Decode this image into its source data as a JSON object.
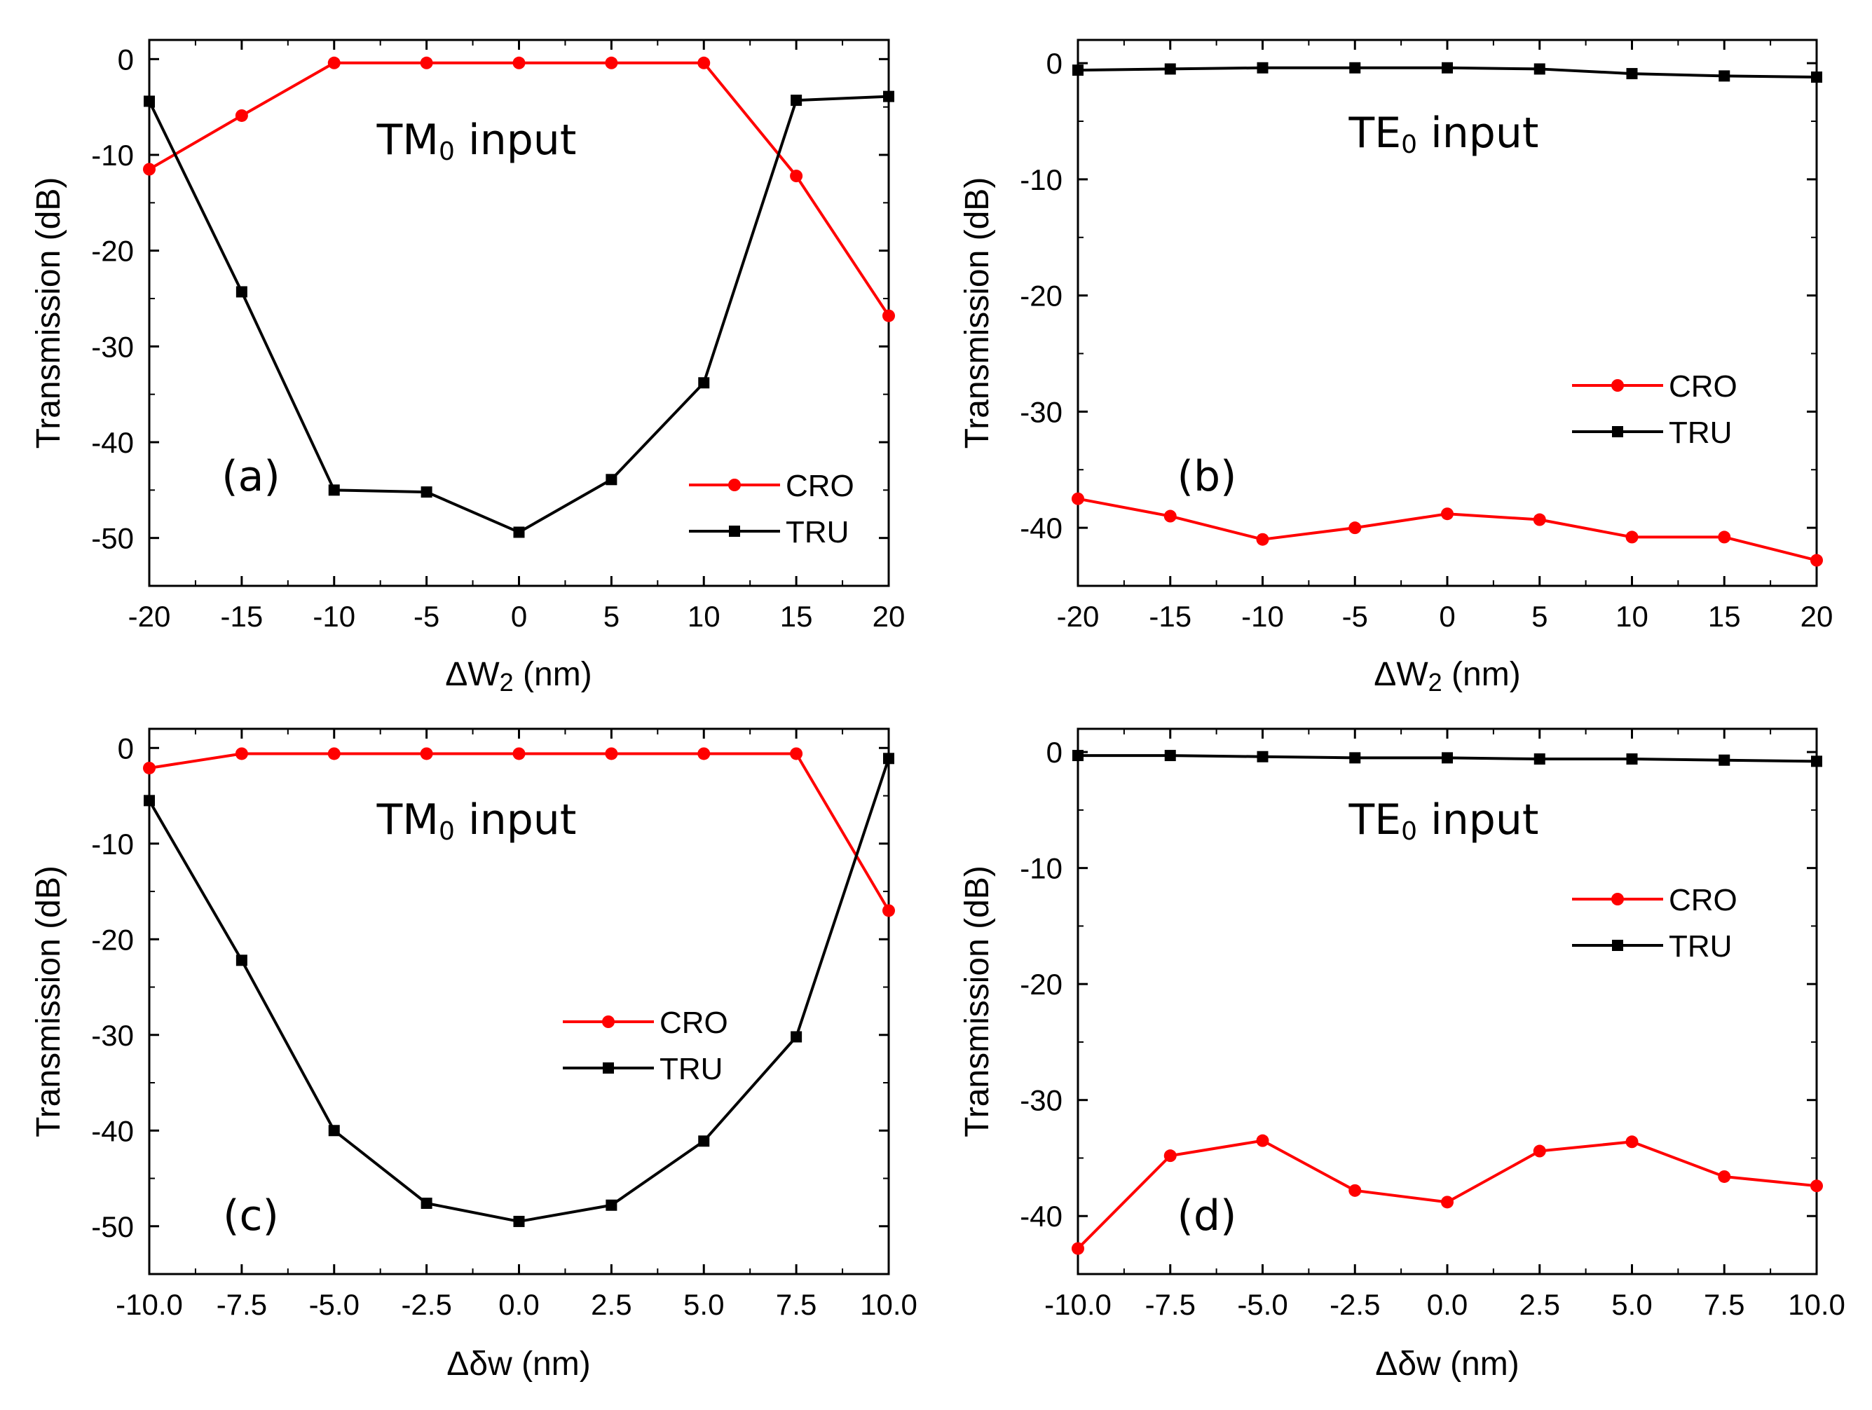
{
  "chart_data": [
    {
      "id": "a",
      "type": "line",
      "panel_label": "(a)",
      "annotation": "TM0 input",
      "annotation_main": "TM",
      "annotation_sub": "0",
      "annotation_rest": " input",
      "xlabel": "ΔW2 (nm)",
      "xlabel_main": "ΔW",
      "xlabel_sub": "2",
      "xlabel_rest": " (nm)",
      "ylabel": "Transmission (dB)",
      "xlim": [
        -20,
        20
      ],
      "ylim": [
        -55,
        2
      ],
      "xticks": [
        -20,
        -15,
        -10,
        -5,
        0,
        5,
        10,
        15,
        20
      ],
      "xtick_labels": [
        "-20",
        "-15",
        "-10",
        "-5",
        "0",
        "5",
        "10",
        "15",
        "20"
      ],
      "yticks": [
        0,
        -10,
        -20,
        -30,
        -40,
        -50
      ],
      "ytick_labels": [
        "0",
        "-10",
        "-20",
        "-30",
        "-40",
        "-50"
      ],
      "legend": {
        "position": "bottom-right"
      },
      "x": [
        -20,
        -15,
        -10,
        -5,
        0,
        5,
        10,
        15,
        20
      ],
      "series": [
        {
          "name": "CRO",
          "color": "#ff0000",
          "marker": "circle",
          "values": [
            -11.5,
            -5.9,
            -0.4,
            -0.4,
            -0.4,
            -0.4,
            -0.4,
            -12.2,
            -26.8
          ]
        },
        {
          "name": "TRU",
          "color": "#000000",
          "marker": "square",
          "values": [
            -4.4,
            -24.3,
            -45.0,
            -45.2,
            -49.4,
            -43.9,
            -33.8,
            -4.3,
            -3.9
          ]
        }
      ]
    },
    {
      "id": "b",
      "type": "line",
      "panel_label": "(b)",
      "annotation": "TE0 input",
      "annotation_main": "TE",
      "annotation_sub": "0",
      "annotation_rest": " input",
      "xlabel": "ΔW2 (nm)",
      "xlabel_main": "ΔW",
      "xlabel_sub": "2",
      "xlabel_rest": " (nm)",
      "ylabel": "Transmission (dB)",
      "xlim": [
        -20,
        20
      ],
      "ylim": [
        -45,
        2
      ],
      "xticks": [
        -20,
        -15,
        -10,
        -5,
        0,
        5,
        10,
        15,
        20
      ],
      "xtick_labels": [
        "-20",
        "-15",
        "-10",
        "-5",
        "0",
        "5",
        "10",
        "15",
        "20"
      ],
      "yticks": [
        0,
        -10,
        -20,
        -30,
        -40
      ],
      "ytick_labels": [
        "0",
        "-10",
        "-20",
        "-30",
        "-40"
      ],
      "legend": {
        "position": "center-right"
      },
      "x": [
        -20,
        -15,
        -10,
        -5,
        0,
        5,
        10,
        15,
        20
      ],
      "series": [
        {
          "name": "CRO",
          "color": "#ff0000",
          "marker": "circle",
          "values": [
            -37.5,
            -39.0,
            -41.0,
            -40.0,
            -38.8,
            -39.3,
            -40.8,
            -40.8,
            -42.8
          ]
        },
        {
          "name": "TRU",
          "color": "#000000",
          "marker": "square",
          "values": [
            -0.6,
            -0.5,
            -0.4,
            -0.4,
            -0.4,
            -0.5,
            -0.9,
            -1.1,
            -1.2
          ]
        }
      ]
    },
    {
      "id": "c",
      "type": "line",
      "panel_label": "(c)",
      "annotation": "TM0 input",
      "annotation_main": "TM",
      "annotation_sub": "0",
      "annotation_rest": " input",
      "xlabel": "Δδw (nm)",
      "xlabel_main": "Δδw (nm)",
      "xlabel_sub": "",
      "xlabel_rest": "",
      "ylabel": "Transmission (dB)",
      "xlim": [
        -10,
        10
      ],
      "ylim": [
        -55,
        2
      ],
      "xticks": [
        -10,
        -7.5,
        -5,
        -2.5,
        0,
        2.5,
        5,
        7.5,
        10
      ],
      "xtick_labels": [
        "-10.0",
        "-7.5",
        "-5.0",
        "-2.5",
        "0.0",
        "2.5",
        "5.0",
        "7.5",
        "10.0"
      ],
      "yticks": [
        0,
        -10,
        -20,
        -30,
        -40,
        -50
      ],
      "ytick_labels": [
        "0",
        "-10",
        "-20",
        "-30",
        "-40",
        "-50"
      ],
      "legend": {
        "position": "center-right"
      },
      "x": [
        -10,
        -7.5,
        -5,
        -2.5,
        0,
        2.5,
        5,
        7.5,
        10
      ],
      "series": [
        {
          "name": "CRO",
          "color": "#ff0000",
          "marker": "circle",
          "values": [
            -2.1,
            -0.6,
            -0.6,
            -0.6,
            -0.6,
            -0.6,
            -0.6,
            -0.6,
            -17.0
          ]
        },
        {
          "name": "TRU",
          "color": "#000000",
          "marker": "square",
          "values": [
            -5.5,
            -22.2,
            -40.0,
            -47.6,
            -49.5,
            -47.8,
            -41.1,
            -30.2,
            -1.1
          ]
        }
      ]
    },
    {
      "id": "d",
      "type": "line",
      "panel_label": "(d)",
      "annotation": "TE0 input",
      "annotation_main": "TE",
      "annotation_sub": "0",
      "annotation_rest": " input",
      "xlabel": "Δδw (nm)",
      "xlabel_main": "Δδw (nm)",
      "xlabel_sub": "",
      "xlabel_rest": "",
      "ylabel": "Transmission (dB)",
      "xlim": [
        -10,
        10
      ],
      "ylim": [
        -45,
        2
      ],
      "xticks": [
        -10,
        -7.5,
        -5,
        -2.5,
        0,
        2.5,
        5,
        7.5,
        10
      ],
      "xtick_labels": [
        "-10.0",
        "-7.5",
        "-5.0",
        "-2.5",
        "0.0",
        "2.5",
        "5.0",
        "7.5",
        "10.0"
      ],
      "yticks": [
        0,
        -10,
        -20,
        -30,
        -40
      ],
      "ytick_labels": [
        "0",
        "-10",
        "-20",
        "-30",
        "-40"
      ],
      "legend": {
        "position": "center-right"
      },
      "x": [
        -10,
        -7.5,
        -5,
        -2.5,
        0,
        2.5,
        5,
        7.5,
        10
      ],
      "series": [
        {
          "name": "CRO",
          "color": "#ff0000",
          "marker": "circle",
          "values": [
            -42.8,
            -34.8,
            -33.5,
            -37.8,
            -38.8,
            -34.4,
            -33.6,
            -36.6,
            -37.4
          ]
        },
        {
          "name": "TRU",
          "color": "#000000",
          "marker": "square",
          "values": [
            -0.3,
            -0.3,
            -0.4,
            -0.5,
            -0.5,
            -0.6,
            -0.6,
            -0.7,
            -0.8
          ]
        }
      ]
    }
  ]
}
